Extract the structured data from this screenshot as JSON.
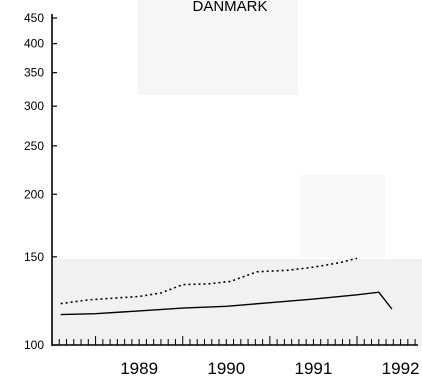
{
  "chart_data": {
    "type": "line",
    "title": "DANMARK",
    "xlabel": "",
    "ylabel": "",
    "x_ticks": [
      "1989",
      "1990",
      "1991",
      "1992"
    ],
    "xlim": [
      1988.5,
      1992.7
    ],
    "y_ticks": [
      100,
      150,
      200,
      250,
      300,
      350,
      400,
      450
    ],
    "ylim": [
      100,
      450
    ],
    "y_scale": "log",
    "grid": false,
    "series": [
      {
        "style": "solid",
        "x": [
          1988.6,
          1989.0,
          1989.5,
          1990.0,
          1990.5,
          1991.0,
          1991.5,
          1992.0,
          1992.25,
          1992.4
        ],
        "y": [
          115,
          115.5,
          117,
          118.5,
          119.5,
          121.5,
          123.5,
          126,
          127.5,
          118
        ]
      },
      {
        "style": "dotted",
        "x": [
          1988.6,
          1988.9,
          1989.2,
          1989.5,
          1989.75,
          1990.0,
          1990.3,
          1990.55,
          1990.85,
          1991.2,
          1991.5,
          1991.8,
          1992.0
        ],
        "y": [
          121,
          123,
          124,
          125,
          127,
          132,
          132.5,
          134,
          140,
          141,
          143,
          146,
          149
        ]
      }
    ]
  }
}
